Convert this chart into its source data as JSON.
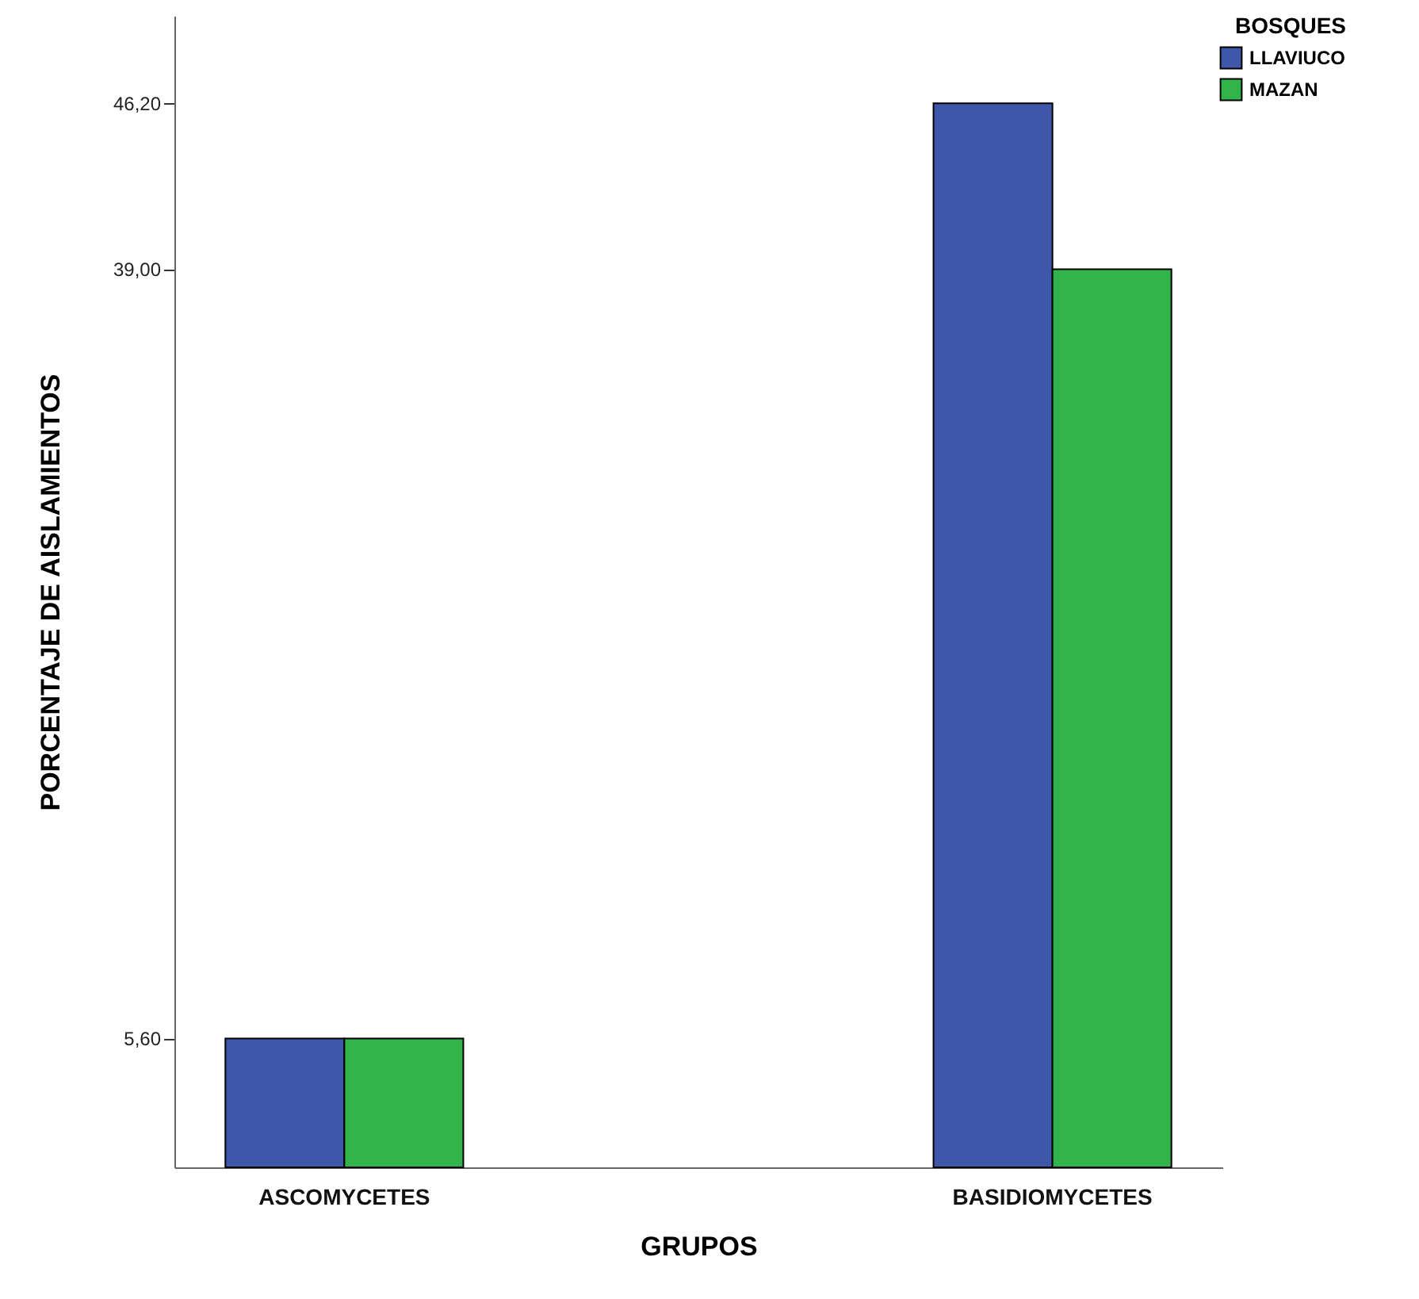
{
  "chart_data": {
    "type": "bar",
    "xlabel": "GRUPOS",
    "ylabel": "PORCENTAJE DE AISLAMIENTOS",
    "legend_title": "BOSQUES",
    "categories": [
      "ASCOMYCETES",
      "BASIDIOMYCETES"
    ],
    "series": [
      {
        "name": "LLAVIUCO",
        "color": "#3f57a9",
        "values": [
          5.6,
          46.2
        ]
      },
      {
        "name": "MAZAN",
        "color": "#33b44a",
        "values": [
          5.6,
          39.0
        ]
      }
    ],
    "ylim": [
      0,
      50
    ],
    "yticks": [
      {
        "value": 5.6,
        "label": "5,60"
      },
      {
        "value": 39.0,
        "label": "39,00"
      },
      {
        "value": 46.2,
        "label": "46,20"
      }
    ],
    "grid": false,
    "legend": "top right"
  }
}
